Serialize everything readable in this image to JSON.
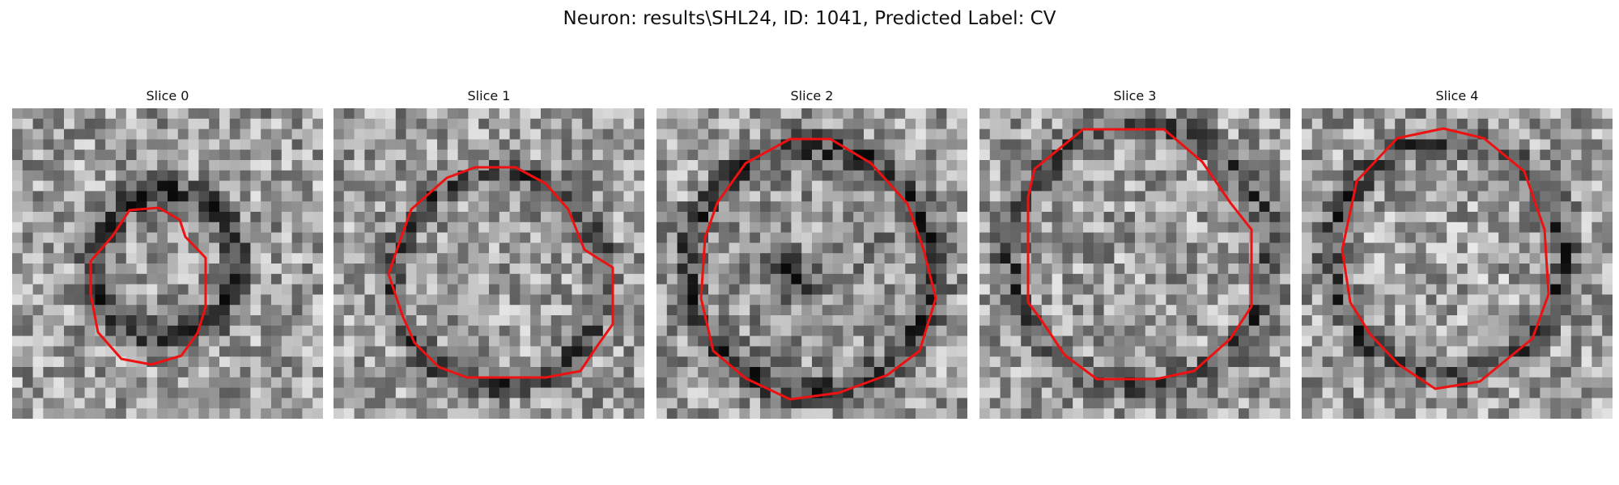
{
  "figure": {
    "title": "Neuron: results\\SHL24, ID: 1041, Predicted Label: CV"
  },
  "colors": {
    "contour": "#ee1111",
    "background": "#ffffff"
  },
  "panels": [
    {
      "title": "Slice 0"
    },
    {
      "title": "Slice 1"
    },
    {
      "title": "Slice 2"
    },
    {
      "title": "Slice 3"
    },
    {
      "title": "Slice 4"
    }
  ]
}
